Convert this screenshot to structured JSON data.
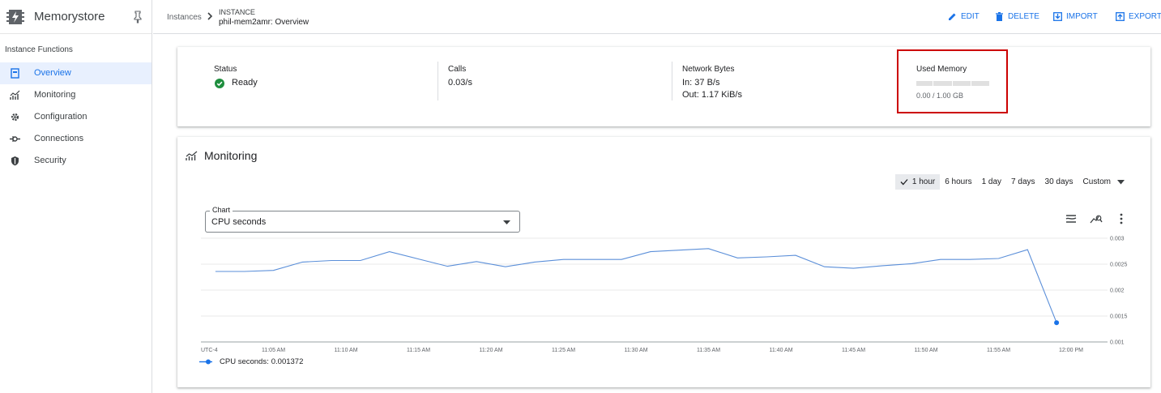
{
  "app": {
    "product_name": "Memorystore",
    "product_icon": "memorystore-icon",
    "pin_icon": "pin-icon"
  },
  "nav": {
    "section_title": "Instance Functions",
    "items": [
      {
        "label": "Overview",
        "icon": "overview-icon",
        "active": true
      },
      {
        "label": "Monitoring",
        "icon": "monitoring-icon",
        "active": false
      },
      {
        "label": "Configuration",
        "icon": "gear-icon",
        "active": false
      },
      {
        "label": "Connections",
        "icon": "connections-icon",
        "active": false
      },
      {
        "label": "Security",
        "icon": "shield-icon",
        "active": false
      }
    ]
  },
  "header": {
    "breadcrumb_root": "Instances",
    "breadcrumb_kind": "INSTANCE",
    "breadcrumb_title": "phil-mem2amr: Overview",
    "actions": [
      {
        "label": "EDIT",
        "icon": "pencil-icon"
      },
      {
        "label": "DELETE",
        "icon": "trash-icon"
      },
      {
        "label": "IMPORT",
        "icon": "import-icon"
      },
      {
        "label": "EXPORT",
        "icon": "export-icon"
      }
    ]
  },
  "summary": {
    "status": {
      "label": "Status",
      "value": "Ready"
    },
    "calls": {
      "label": "Calls",
      "value": "0.03/s"
    },
    "network": {
      "label": "Network Bytes",
      "in": "In: 37 B/s",
      "out": "Out: 1.17 KiB/s"
    },
    "memory": {
      "label": "Used Memory",
      "value": "0.00 / 1.00 GB",
      "used_fraction": 0.0
    }
  },
  "monitoring": {
    "title": "Monitoring",
    "ranges": [
      "1 hour",
      "6 hours",
      "1 day",
      "7 days",
      "30 days",
      "Custom"
    ],
    "selected_range": "1 hour",
    "chart_select_label": "Chart",
    "chart_select_value": "CPU seconds",
    "tools": [
      "legend-toggle-icon",
      "explore-chart-icon",
      "more-vert-icon"
    ],
    "legend_label": "CPU seconds:",
    "legend_value": "0.001372",
    "accent_color": "#1a73e8"
  },
  "chart_data": {
    "type": "line",
    "timezone_label": "UTC-4",
    "x_tick_labels": [
      "11:05 AM",
      "11:10 AM",
      "11:15 AM",
      "11:20 AM",
      "11:25 AM",
      "11:30 AM",
      "11:35 AM",
      "11:40 AM",
      "11:45 AM",
      "11:50 AM",
      "11:55 AM",
      "12:00 PM"
    ],
    "y_tick_labels": [
      "0.003",
      "0.0025",
      "0.002",
      "0.0015",
      "0.001"
    ],
    "ylim": [
      0.001,
      0.003
    ],
    "series": [
      {
        "name": "CPU seconds",
        "color": "#5b8fd9",
        "x": [
          "11:01 AM",
          "11:03 AM",
          "11:05 AM",
          "11:07 AM",
          "11:09 AM",
          "11:11 AM",
          "11:13 AM",
          "11:15 AM",
          "11:17 AM",
          "11:19 AM",
          "11:21 AM",
          "11:23 AM",
          "11:25 AM",
          "11:27 AM",
          "11:29 AM",
          "11:31 AM",
          "11:33 AM",
          "11:35 AM",
          "11:37 AM",
          "11:39 AM",
          "11:41 AM",
          "11:43 AM",
          "11:45 AM",
          "11:47 AM",
          "11:49 AM",
          "11:51 AM",
          "11:53 AM",
          "11:55 AM",
          "11:57 AM",
          "11:59 AM"
        ],
        "values": [
          0.00236,
          0.00236,
          0.00238,
          0.00254,
          0.00257,
          0.00257,
          0.00274,
          0.0026,
          0.00246,
          0.00255,
          0.00245,
          0.00254,
          0.00259,
          0.00259,
          0.00259,
          0.00274,
          0.00277,
          0.0028,
          0.00262,
          0.00264,
          0.00267,
          0.00245,
          0.00242,
          0.00247,
          0.00251,
          0.00259,
          0.00259,
          0.00261,
          0.00278,
          0.001372
        ]
      }
    ]
  }
}
